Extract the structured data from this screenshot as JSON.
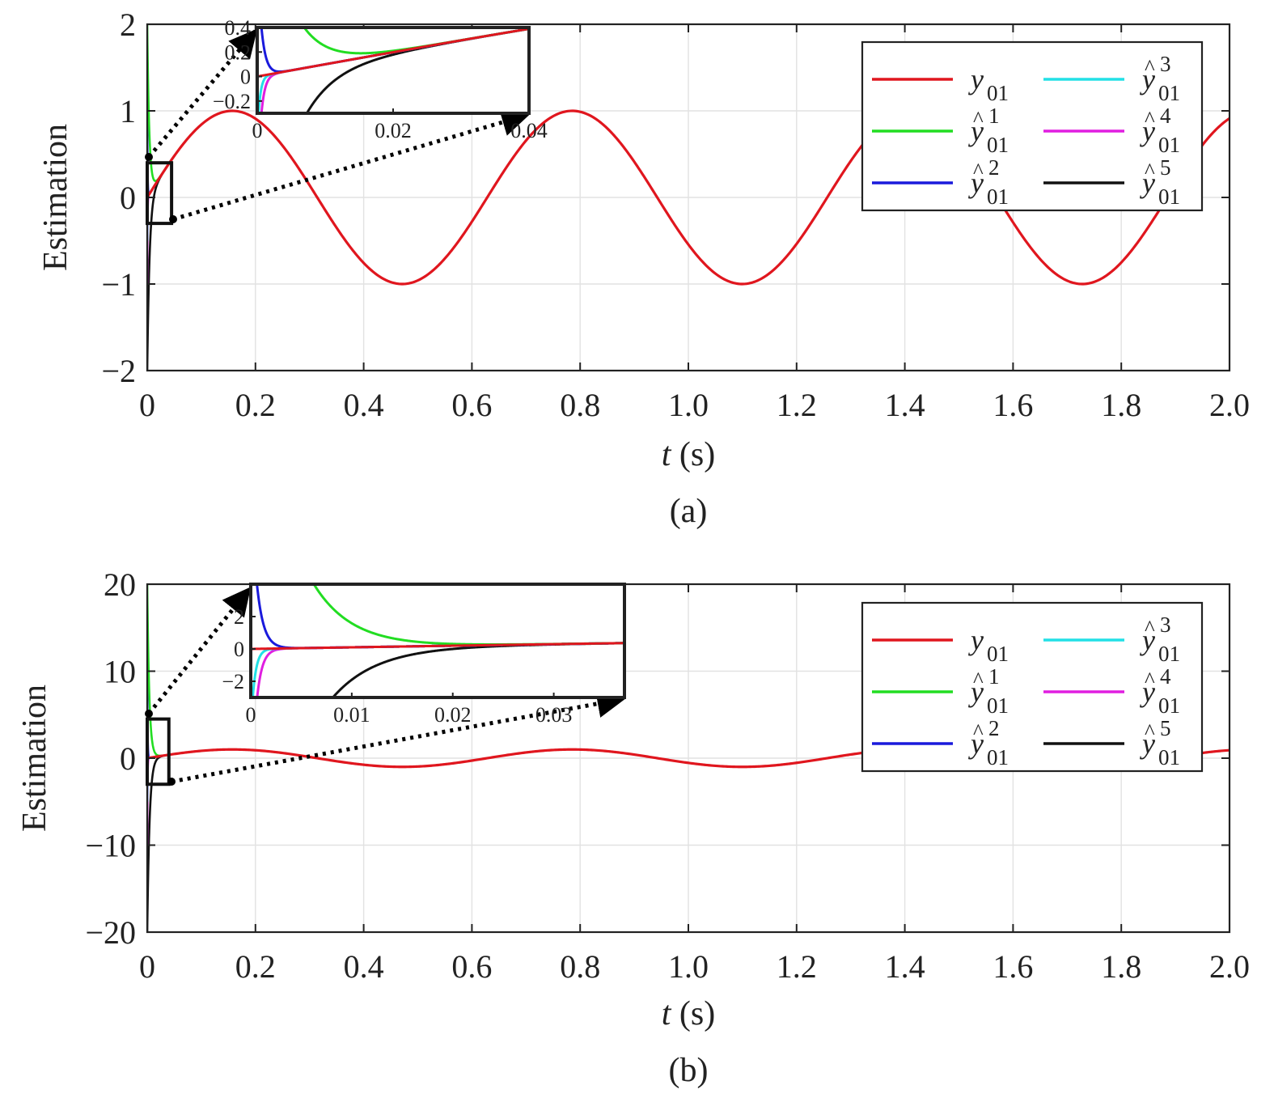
{
  "chart_data": [
    {
      "type": "line",
      "caption": "(a)",
      "ylabel": "Estimation",
      "xlabel_var": "t",
      "xlabel_unit": " (s)",
      "xlim": [
        0,
        2
      ],
      "ylim": [
        -2,
        2
      ],
      "xticks": [
        0,
        0.2,
        0.4,
        0.6,
        0.8,
        1.0,
        1.2,
        1.4,
        1.6,
        1.8,
        2.0
      ],
      "xtick_labels": [
        "0",
        "0.2",
        "0.4",
        "0.6",
        "0.8",
        "1.0",
        "1.2",
        "1.4",
        "1.6",
        "1.8",
        "2.0"
      ],
      "yticks": [
        -2,
        -1,
        0,
        1,
        2
      ],
      "ytick_labels": [
        "−2",
        "−1",
        "0",
        "1",
        "2"
      ],
      "grid": true,
      "legend_position": "top-right",
      "signal": {
        "function": "sin",
        "amplitude": 1,
        "angular_frequency": 10
      },
      "series": [
        {
          "name": "y01",
          "label_main": "y",
          "label_hat": false,
          "label_sub": "01",
          "label_sup": "",
          "color": "#e0161e",
          "initial_value": 0
        },
        {
          "name": "ŷ01^1",
          "label_main": "y",
          "label_hat": true,
          "label_sub": "01",
          "label_sup": "1",
          "color": "#22dd22",
          "initial_value": 2
        },
        {
          "name": "ŷ01^2",
          "label_main": "y",
          "label_hat": true,
          "label_sub": "01",
          "label_sup": "2",
          "color": "#1a1adc",
          "initial_value": 1
        },
        {
          "name": "ŷ01^3",
          "label_main": "y",
          "label_hat": true,
          "label_sub": "01",
          "label_sup": "3",
          "color": "#22e0e6",
          "initial_value": -0.5
        },
        {
          "name": "ŷ01^4",
          "label_main": "y",
          "label_hat": true,
          "label_sub": "01",
          "label_sup": "4",
          "color": "#e01ee0",
          "initial_value": -1
        },
        {
          "name": "ŷ01^5",
          "label_main": "y",
          "label_hat": true,
          "label_sub": "01",
          "label_sup": "5",
          "color": "#111111",
          "initial_value": -2
        }
      ],
      "zoom_region": {
        "x": [
          0,
          0.045
        ],
        "y": [
          -0.3,
          0.4
        ]
      },
      "inset": {
        "xlim": [
          0,
          0.04
        ],
        "ylim": [
          -0.3,
          0.4
        ],
        "xticks": [
          0,
          0.02,
          0.04
        ],
        "xtick_labels": [
          "0",
          "0.02",
          "0.04"
        ],
        "yticks": [
          -0.2,
          0,
          0.2,
          0.4
        ],
        "ytick_labels": [
          "−0.2",
          "0",
          "0.2",
          "0.4"
        ]
      }
    },
    {
      "type": "line",
      "caption": "(b)",
      "ylabel": "Estimation",
      "xlabel_var": "t",
      "xlabel_unit": " (s)",
      "xlim": [
        0,
        2
      ],
      "ylim": [
        -20,
        20
      ],
      "xticks": [
        0,
        0.2,
        0.4,
        0.6,
        0.8,
        1.0,
        1.2,
        1.4,
        1.6,
        1.8,
        2.0
      ],
      "xtick_labels": [
        "0",
        "0.2",
        "0.4",
        "0.6",
        "0.8",
        "1.0",
        "1.2",
        "1.4",
        "1.6",
        "1.8",
        "2.0"
      ],
      "yticks": [
        -20,
        -10,
        0,
        10,
        20
      ],
      "ytick_labels": [
        "−20",
        "−10",
        "0",
        "10",
        "20"
      ],
      "grid": true,
      "legend_position": "top-right",
      "signal": {
        "function": "sin",
        "amplitude": 1,
        "angular_frequency": 10
      },
      "series": [
        {
          "name": "y01",
          "label_main": "y",
          "label_hat": false,
          "label_sub": "01",
          "label_sup": "",
          "color": "#e0161e",
          "initial_value": 0
        },
        {
          "name": "ŷ01^1",
          "label_main": "y",
          "label_hat": true,
          "label_sub": "01",
          "label_sup": "1",
          "color": "#22dd22",
          "initial_value": 20
        },
        {
          "name": "ŷ01^2",
          "label_main": "y",
          "label_hat": true,
          "label_sub": "01",
          "label_sup": "2",
          "color": "#1a1adc",
          "initial_value": 10
        },
        {
          "name": "ŷ01^3",
          "label_main": "y",
          "label_hat": true,
          "label_sub": "01",
          "label_sup": "3",
          "color": "#22e0e6",
          "initial_value": -5
        },
        {
          "name": "ŷ01^4",
          "label_main": "y",
          "label_hat": true,
          "label_sub": "01",
          "label_sup": "4",
          "color": "#e01ee0",
          "initial_value": -10
        },
        {
          "name": "ŷ01^5",
          "label_main": "y",
          "label_hat": true,
          "label_sub": "01",
          "label_sup": "5",
          "color": "#111111",
          "initial_value": -20
        }
      ],
      "zoom_region": {
        "x": [
          0,
          0.04
        ],
        "y": [
          -3,
          4.5
        ]
      },
      "inset": {
        "xlim": [
          0,
          0.037
        ],
        "ylim": [
          -3,
          4
        ],
        "xticks": [
          0,
          0.01,
          0.02,
          0.03
        ],
        "xtick_labels": [
          "0",
          "0.01",
          "0.02",
          "0.03"
        ],
        "yticks": [
          -2,
          0,
          2
        ],
        "ytick_labels": [
          "−2",
          "0",
          "2"
        ]
      }
    }
  ]
}
